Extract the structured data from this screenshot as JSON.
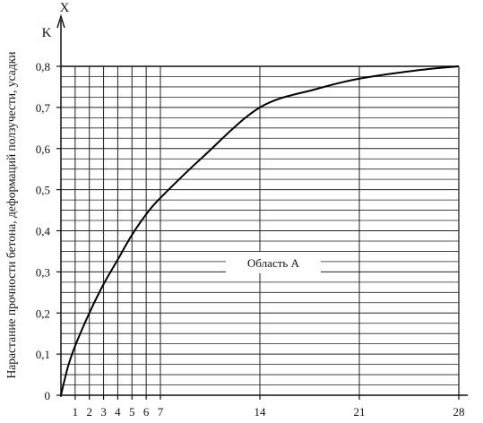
{
  "chart_data": {
    "type": "line",
    "x_axis_letter": "X",
    "y_axis_letter": "K",
    "ylabel": "Нарастание прочности бетона, деформаций ползучести, усадки",
    "xlabel": "",
    "x_ticks": [
      1,
      2,
      3,
      4,
      5,
      6,
      7,
      14,
      21,
      28
    ],
    "y_ticks": [
      "0",
      "0,1",
      "0,2",
      "0,3",
      "0,4",
      "0,5",
      "0,6",
      "0,7",
      "0,8"
    ],
    "xlim": [
      0,
      28
    ],
    "ylim": [
      0,
      0.8
    ],
    "grid": true,
    "region_label": "Область А",
    "series": [
      {
        "x": [
          0,
          0.5,
          1,
          2,
          3,
          4,
          5,
          6,
          7,
          10,
          14,
          18,
          21,
          25,
          28
        ],
        "values": [
          0,
          0.07,
          0.12,
          0.2,
          0.27,
          0.33,
          0.39,
          0.44,
          0.48,
          0.58,
          0.7,
          0.745,
          0.77,
          0.79,
          0.8
        ]
      }
    ]
  }
}
